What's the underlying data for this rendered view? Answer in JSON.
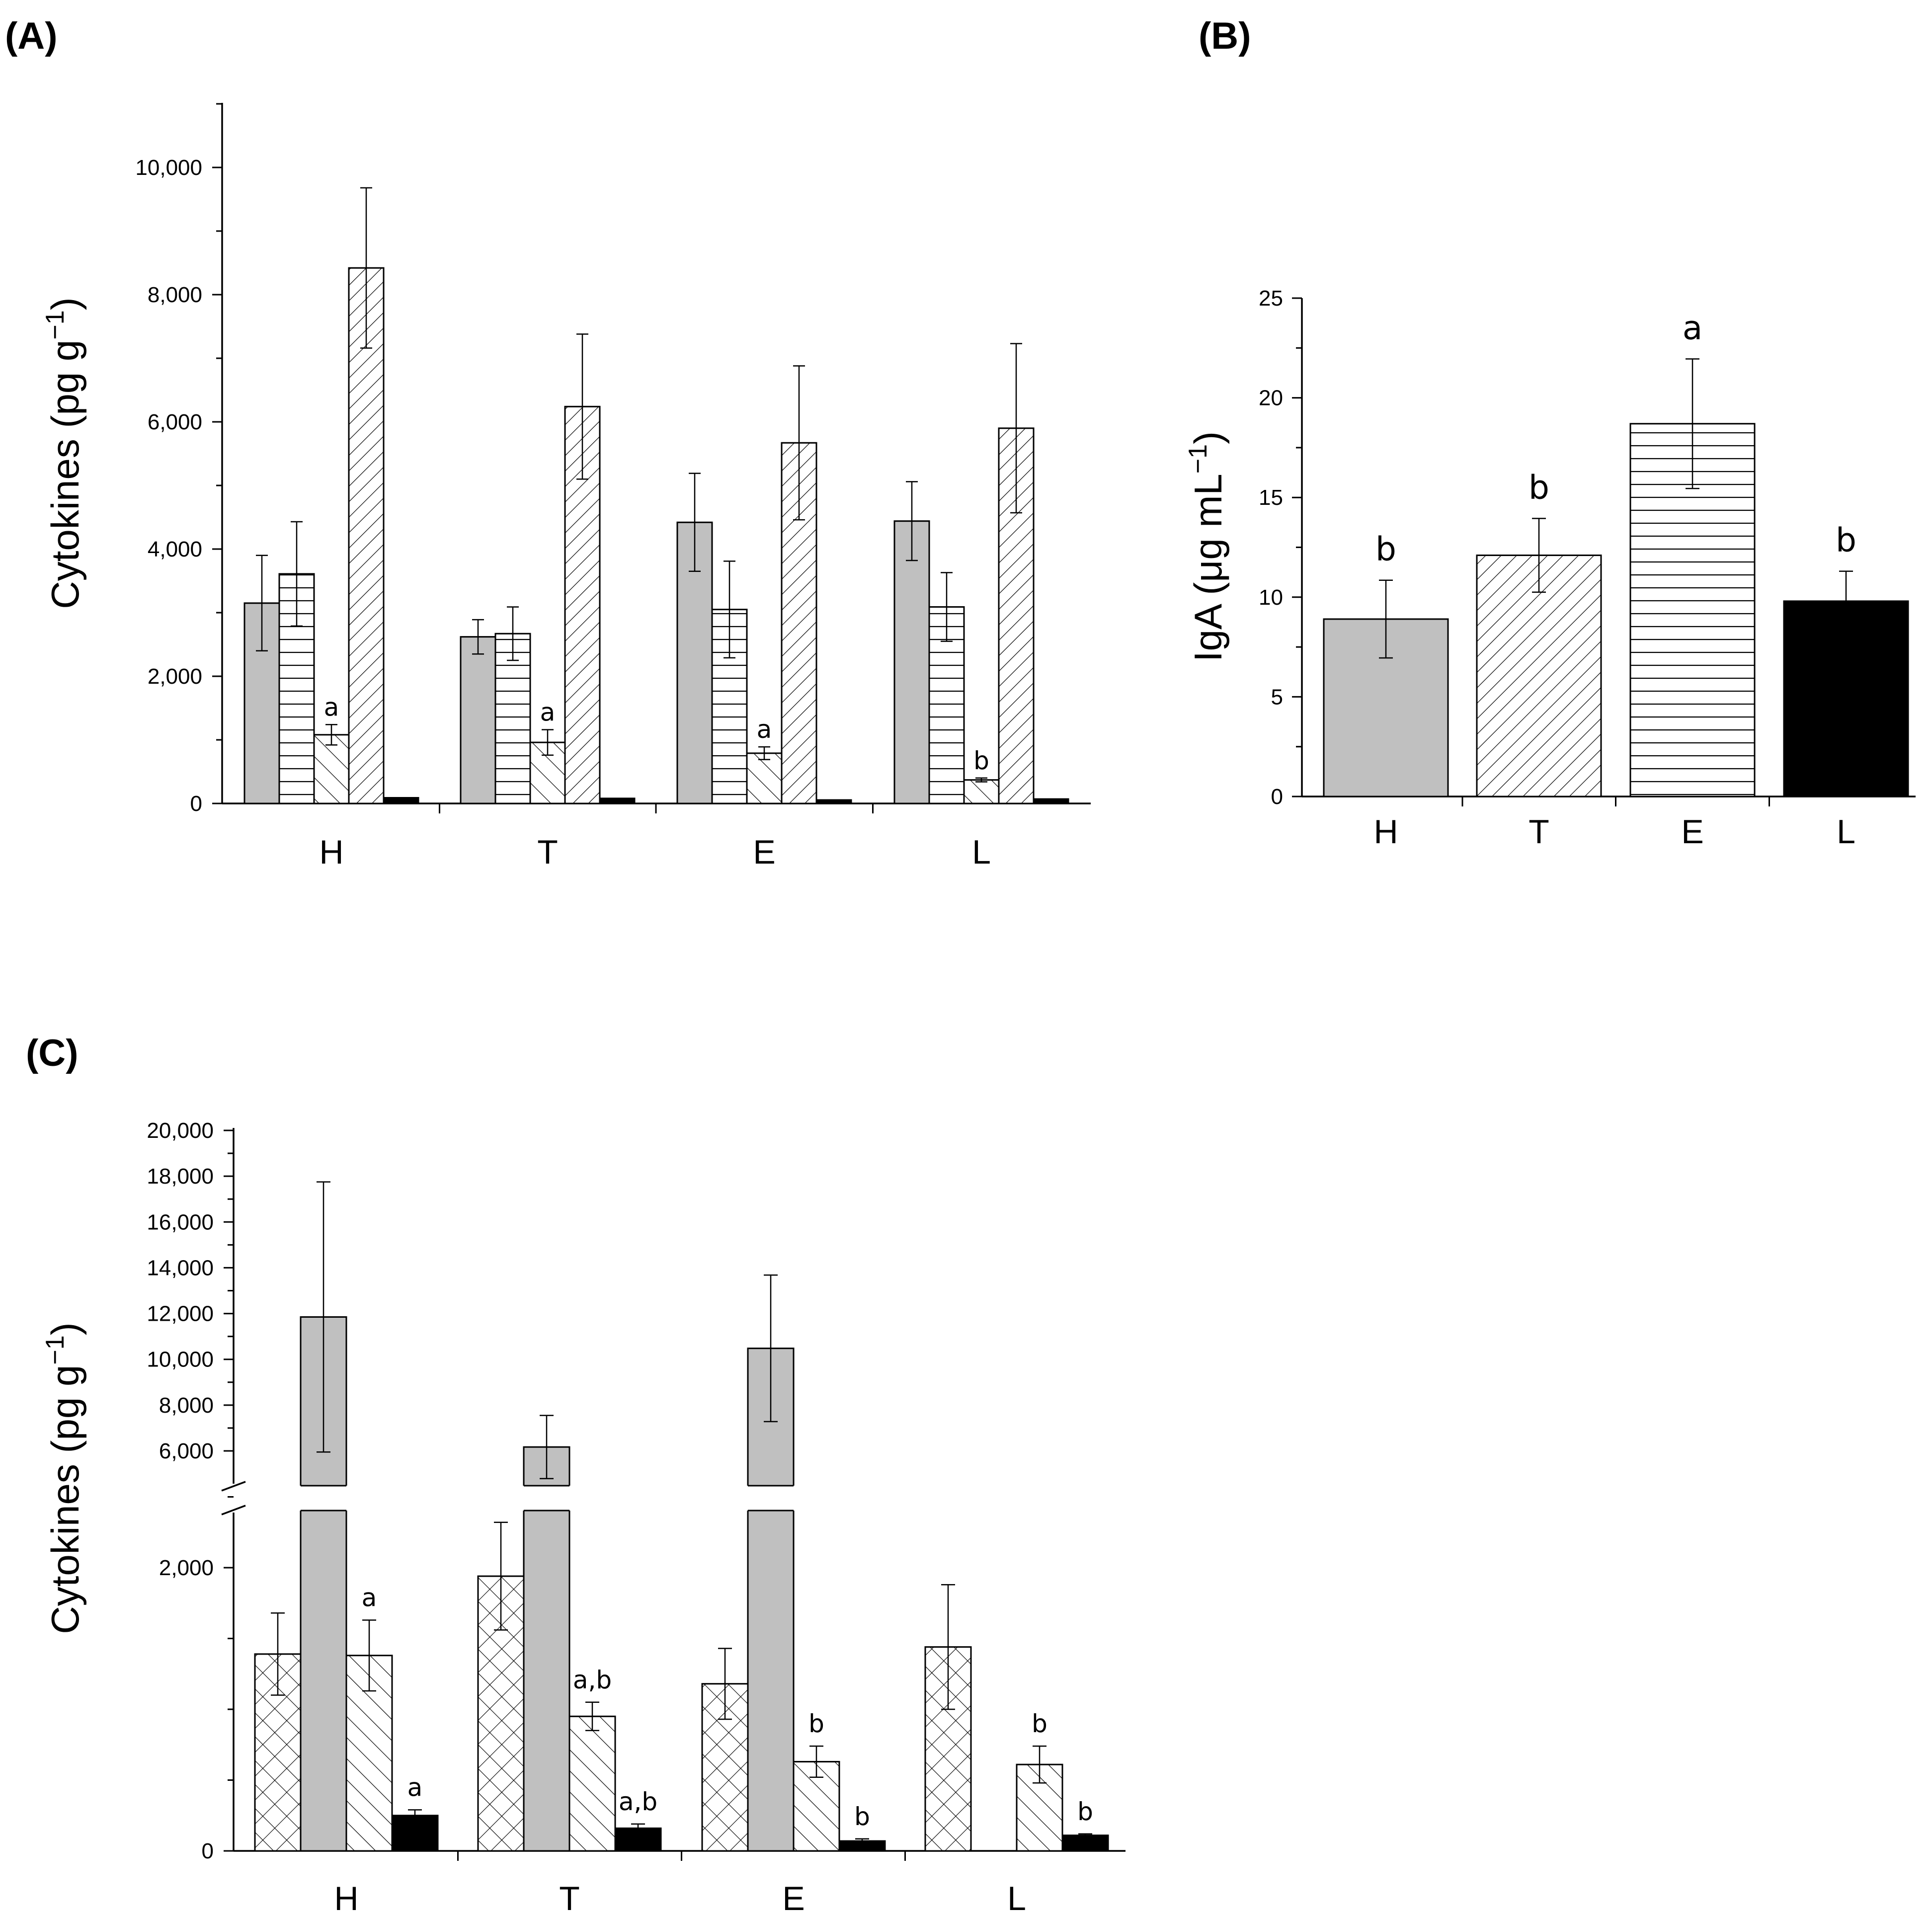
{
  "figure": {
    "panel_a_label": "(A)",
    "panel_b_label": "(B)",
    "panel_c_label": "(C)"
  },
  "chart_data": [
    {
      "panel": "A",
      "type": "bar",
      "ylabel": "Cytokines (pg g",
      "ylabel_sup": "−1",
      "ylabel_close": ")",
      "ylim": [
        0,
        11000
      ],
      "yticks": [
        0,
        2000,
        4000,
        6000,
        8000,
        10000
      ],
      "ytick_labels": [
        "0",
        "2,000",
        "4,000",
        "6,000",
        "8,000",
        "10,000"
      ],
      "categories": [
        "H",
        "T",
        "E",
        "L"
      ],
      "series": [
        {
          "name": "series-1",
          "pattern": "gray",
          "values": [
            3150,
            2620,
            4420,
            4440
          ],
          "errors": [
            750,
            270,
            770,
            620
          ],
          "letters": [
            "",
            "",
            "",
            ""
          ]
        },
        {
          "name": "series-2",
          "pattern": "hlines",
          "values": [
            3610,
            2670,
            3050,
            3090
          ],
          "errors": [
            820,
            420,
            760,
            540
          ],
          "letters": [
            "",
            "",
            "",
            ""
          ]
        },
        {
          "name": "series-3",
          "pattern": "backdiag",
          "values": [
            1080,
            960,
            790,
            370
          ],
          "errors": [
            160,
            200,
            100,
            30
          ],
          "letters": [
            "a",
            "a",
            "a",
            "b"
          ]
        },
        {
          "name": "series-4",
          "pattern": "fwddiag",
          "values": [
            8420,
            6240,
            5670,
            5900
          ],
          "errors": [
            1260,
            1140,
            1210,
            1330
          ],
          "letters": [
            "",
            "",
            "",
            ""
          ]
        },
        {
          "name": "series-5",
          "pattern": "black",
          "values": [
            90,
            80,
            55,
            70
          ],
          "errors": [
            0,
            0,
            0,
            0
          ],
          "letters": [
            "",
            "",
            "",
            ""
          ]
        }
      ]
    },
    {
      "panel": "B",
      "type": "bar",
      "ylabel": "IgA (μg mL",
      "ylabel_sup": "−1",
      "ylabel_close": ")",
      "ylim": [
        0,
        25
      ],
      "yticks": [
        0,
        5,
        10,
        15,
        20,
        25
      ],
      "ytick_labels": [
        "0",
        "5",
        "10",
        "15",
        "20",
        "25"
      ],
      "categories": [
        "H",
        "T",
        "E",
        "L"
      ],
      "values": [
        8.9,
        12.1,
        18.7,
        9.8
      ],
      "errors": [
        1.95,
        1.85,
        3.25,
        1.5
      ],
      "patterns": [
        "gray",
        "fwddiag",
        "hlines",
        "black"
      ],
      "letters": [
        "b",
        "b",
        "a",
        "b"
      ]
    },
    {
      "panel": "C",
      "type": "bar",
      "ylabel": "Cytokines (pg g",
      "ylabel_sup": "−1",
      "ylabel_close": ")",
      "axis_break": [
        2700,
        5000
      ],
      "ylim_lower": [
        0,
        2500
      ],
      "ylim_upper": [
        5000,
        20000
      ],
      "yticks": [
        0,
        2000,
        6000,
        8000,
        10000,
        12000,
        14000,
        16000,
        18000,
        20000
      ],
      "ytick_labels": [
        "0",
        "2,000",
        "6,000",
        "8,000",
        "10,000",
        "12,000",
        "14,000",
        "16,000",
        "18,000",
        "20,000"
      ],
      "categories": [
        "H",
        "T",
        "E",
        "L"
      ],
      "series": [
        {
          "name": "series-1",
          "pattern": "crosshatch",
          "values": [
            1390,
            1940,
            1180,
            1440
          ],
          "errors": [
            290,
            380,
            250,
            440
          ],
          "letters": [
            "",
            "",
            "",
            ""
          ]
        },
        {
          "name": "series-2",
          "pattern": "gray",
          "values": [
            11850,
            6170,
            10480,
            null
          ],
          "errors": [
            5900,
            1380,
            3200,
            null
          ],
          "letters": [
            "",
            "",
            "",
            ""
          ]
        },
        {
          "name": "series-3",
          "pattern": "backdiag",
          "values": [
            1380,
            950,
            630,
            610
          ],
          "errors": [
            250,
            100,
            110,
            130
          ],
          "letters": [
            "a",
            "a,b",
            "b",
            "b"
          ]
        },
        {
          "name": "series-4",
          "pattern": "black",
          "values": [
            250,
            160,
            70,
            110
          ],
          "errors": [
            40,
            30,
            15,
            10
          ],
          "letters": [
            "a",
            "a,b",
            "b",
            "b"
          ]
        }
      ]
    }
  ]
}
